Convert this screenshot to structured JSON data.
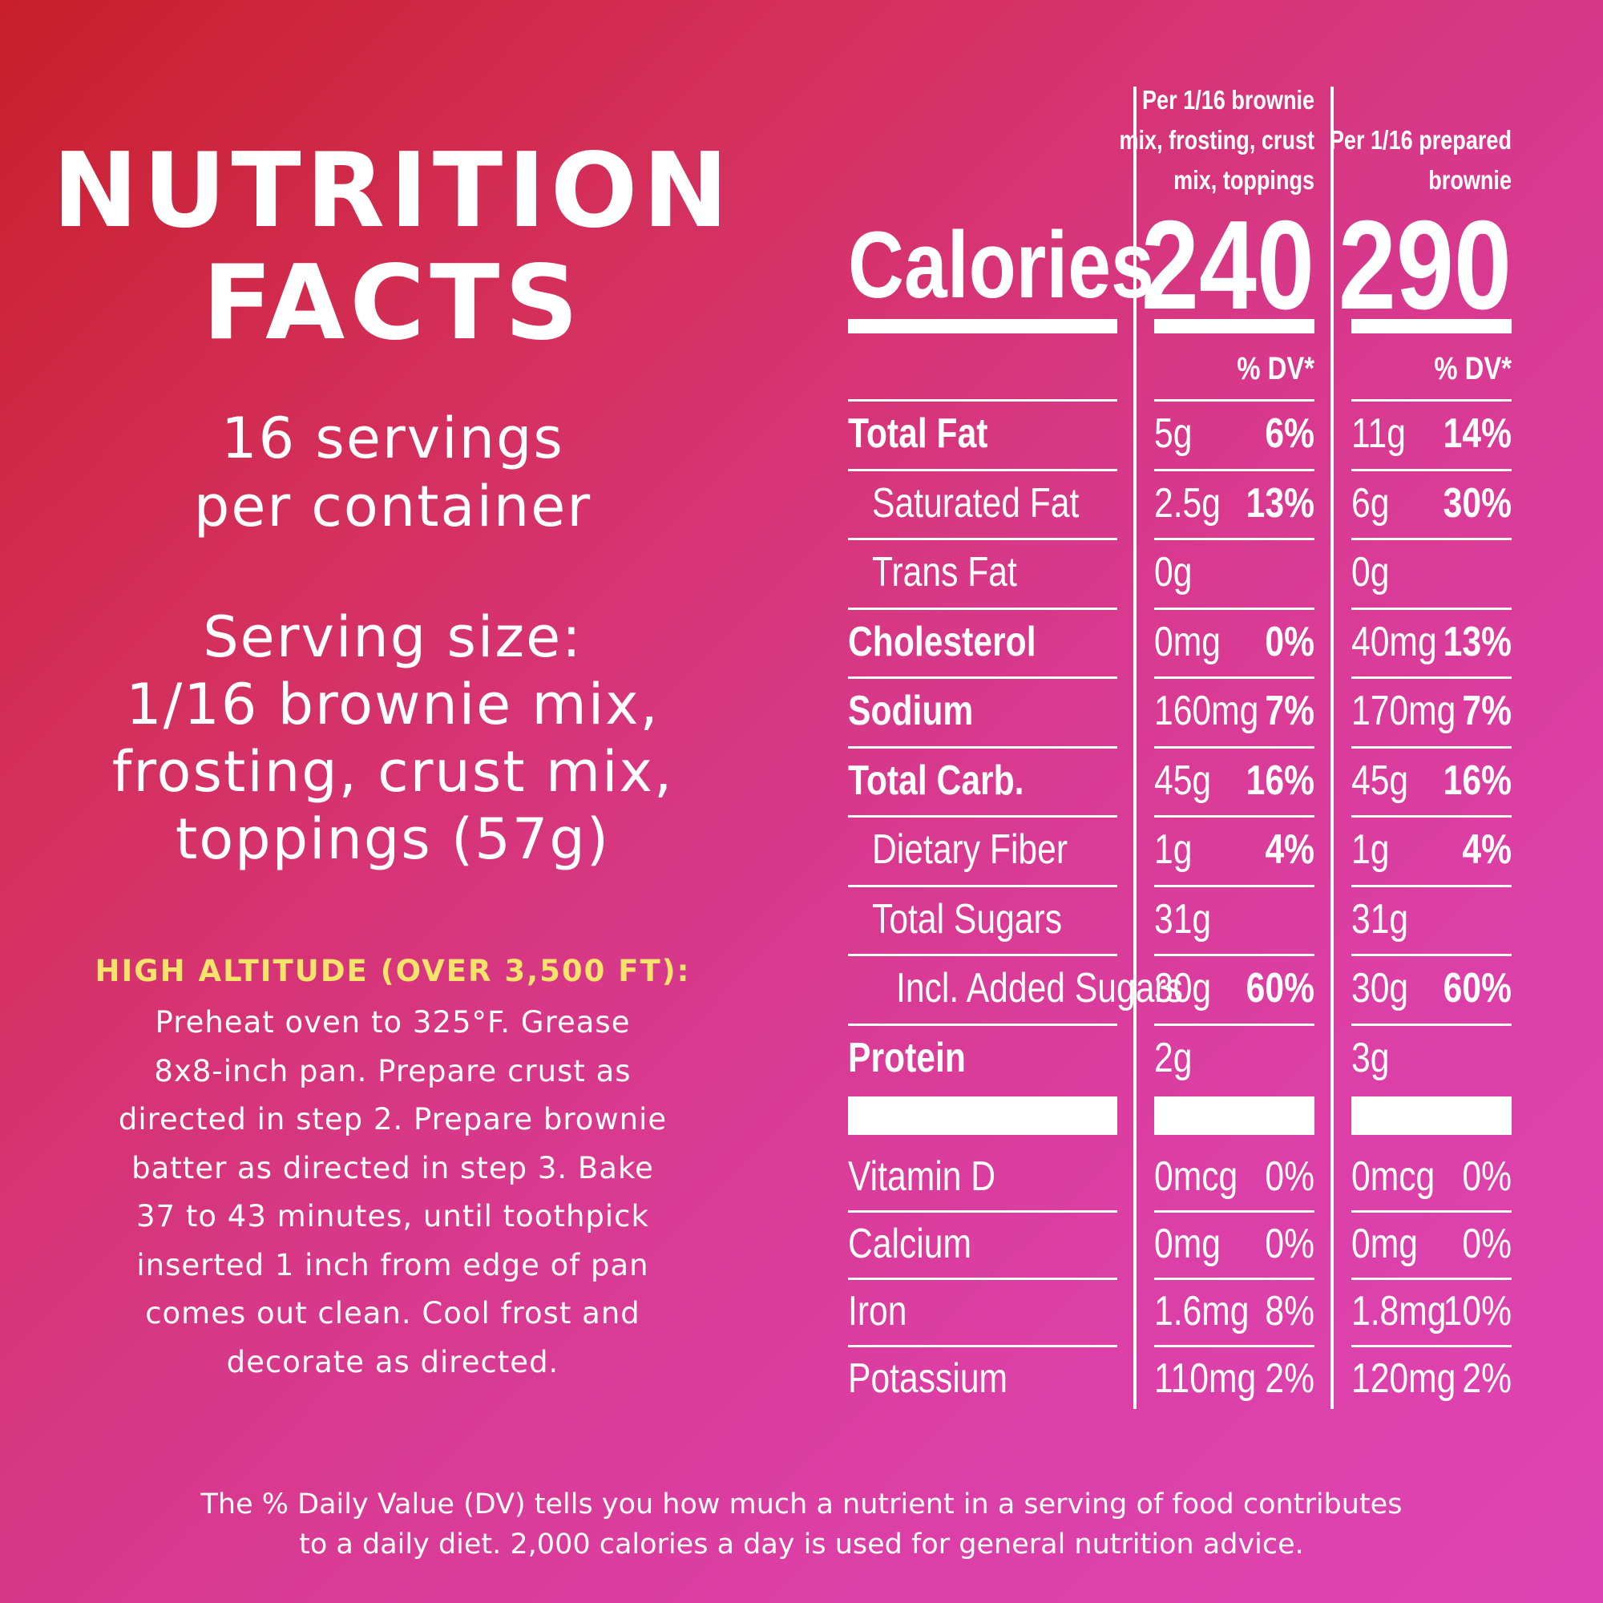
{
  "title_line1": "NUTRITION",
  "title_line2": "FACTS",
  "servings_line1": "16 servings",
  "servings_line2": "per container",
  "serving_size": [
    "Serving size:",
    "1/16 brownie mix,",
    "frosting, crust mix,",
    "toppings (57g)"
  ],
  "high_altitude": {
    "heading": "HIGH ALTITUDE (OVER 3,500 FT):",
    "lines": [
      "Preheat oven to 325°F. Grease",
      "8x8-inch pan. Prepare crust as",
      "directed in step 2. Prepare brownie",
      "batter as directed in step 3. Bake",
      "37 to 43 minutes, until toothpick",
      "inserted 1 inch from edge of pan",
      "comes out clean. Cool frost and",
      "decorate as directed."
    ]
  },
  "columns": [
    {
      "header": [
        "Per 1/16 brownie",
        "mix, frosting, crust",
        "mix, toppings"
      ],
      "calories": "240",
      "dv_label": "% DV*"
    },
    {
      "header": [
        "Per 1/16 prepared",
        "brownie"
      ],
      "calories": "290",
      "dv_label": "% DV*"
    }
  ],
  "calories_label": "Calories",
  "nutrients": [
    {
      "name": "Total Fat",
      "bold": true,
      "indent": 0,
      "a1": "5g",
      "p1": "6%",
      "a2": "11g",
      "p2": "14%"
    },
    {
      "name": "Saturated Fat",
      "bold": false,
      "indent": 1,
      "a1": "2.5g",
      "p1": "13%",
      "a2": "6g",
      "p2": "30%"
    },
    {
      "name": "Trans Fat",
      "bold": false,
      "indent": 1,
      "a1": "0g",
      "p1": "",
      "a2": "0g",
      "p2": ""
    },
    {
      "name": "Cholesterol",
      "bold": true,
      "indent": 0,
      "a1": "0mg",
      "p1": "0%",
      "a2": "40mg",
      "p2": "13%"
    },
    {
      "name": "Sodium",
      "bold": true,
      "indent": 0,
      "a1": "160mg",
      "p1": "7%",
      "a2": "170mg",
      "p2": "7%"
    },
    {
      "name": "Total Carb.",
      "bold": true,
      "indent": 0,
      "a1": "45g",
      "p1": "16%",
      "a2": "45g",
      "p2": "16%"
    },
    {
      "name": "Dietary Fiber",
      "bold": false,
      "indent": 1,
      "a1": "1g",
      "p1": "4%",
      "a2": "1g",
      "p2": "4%"
    },
    {
      "name": "Total Sugars",
      "bold": false,
      "indent": 1,
      "a1": "31g",
      "p1": "",
      "a2": "31g",
      "p2": ""
    },
    {
      "name": "Incl. Added Sugars",
      "bold": false,
      "indent": 2,
      "a1": "30g",
      "p1": "60%",
      "a2": "30g",
      "p2": "60%"
    },
    {
      "name": "Protein",
      "bold": true,
      "indent": 0,
      "a1": "2g",
      "p1": "",
      "a2": "3g",
      "p2": ""
    }
  ],
  "vitamins": [
    {
      "name": "Vitamin D",
      "a1": "0mcg",
      "p1": "0%",
      "a2": "0mcg",
      "p2": "0%"
    },
    {
      "name": "Calcium",
      "a1": "0mg",
      "p1": "0%",
      "a2": "0mg",
      "p2": "0%"
    },
    {
      "name": "Iron",
      "a1": "1.6mg",
      "p1": "8%",
      "a2": "1.8mg",
      "p2": "10%"
    },
    {
      "name": "Potassium",
      "a1": "110mg",
      "p1": "2%",
      "a2": "120mg",
      "p2": "2%"
    }
  ],
  "footnote": [
    "The % Daily Value (DV) tells you how much a nutrient in a serving of food contributes",
    "to a daily diet. 2,000 calories a day is used for general nutrition advice."
  ],
  "colors": {
    "accent_yellow": "#f5e36a",
    "bg_start": "#c81f2a",
    "bg_end": "#de44b4"
  }
}
